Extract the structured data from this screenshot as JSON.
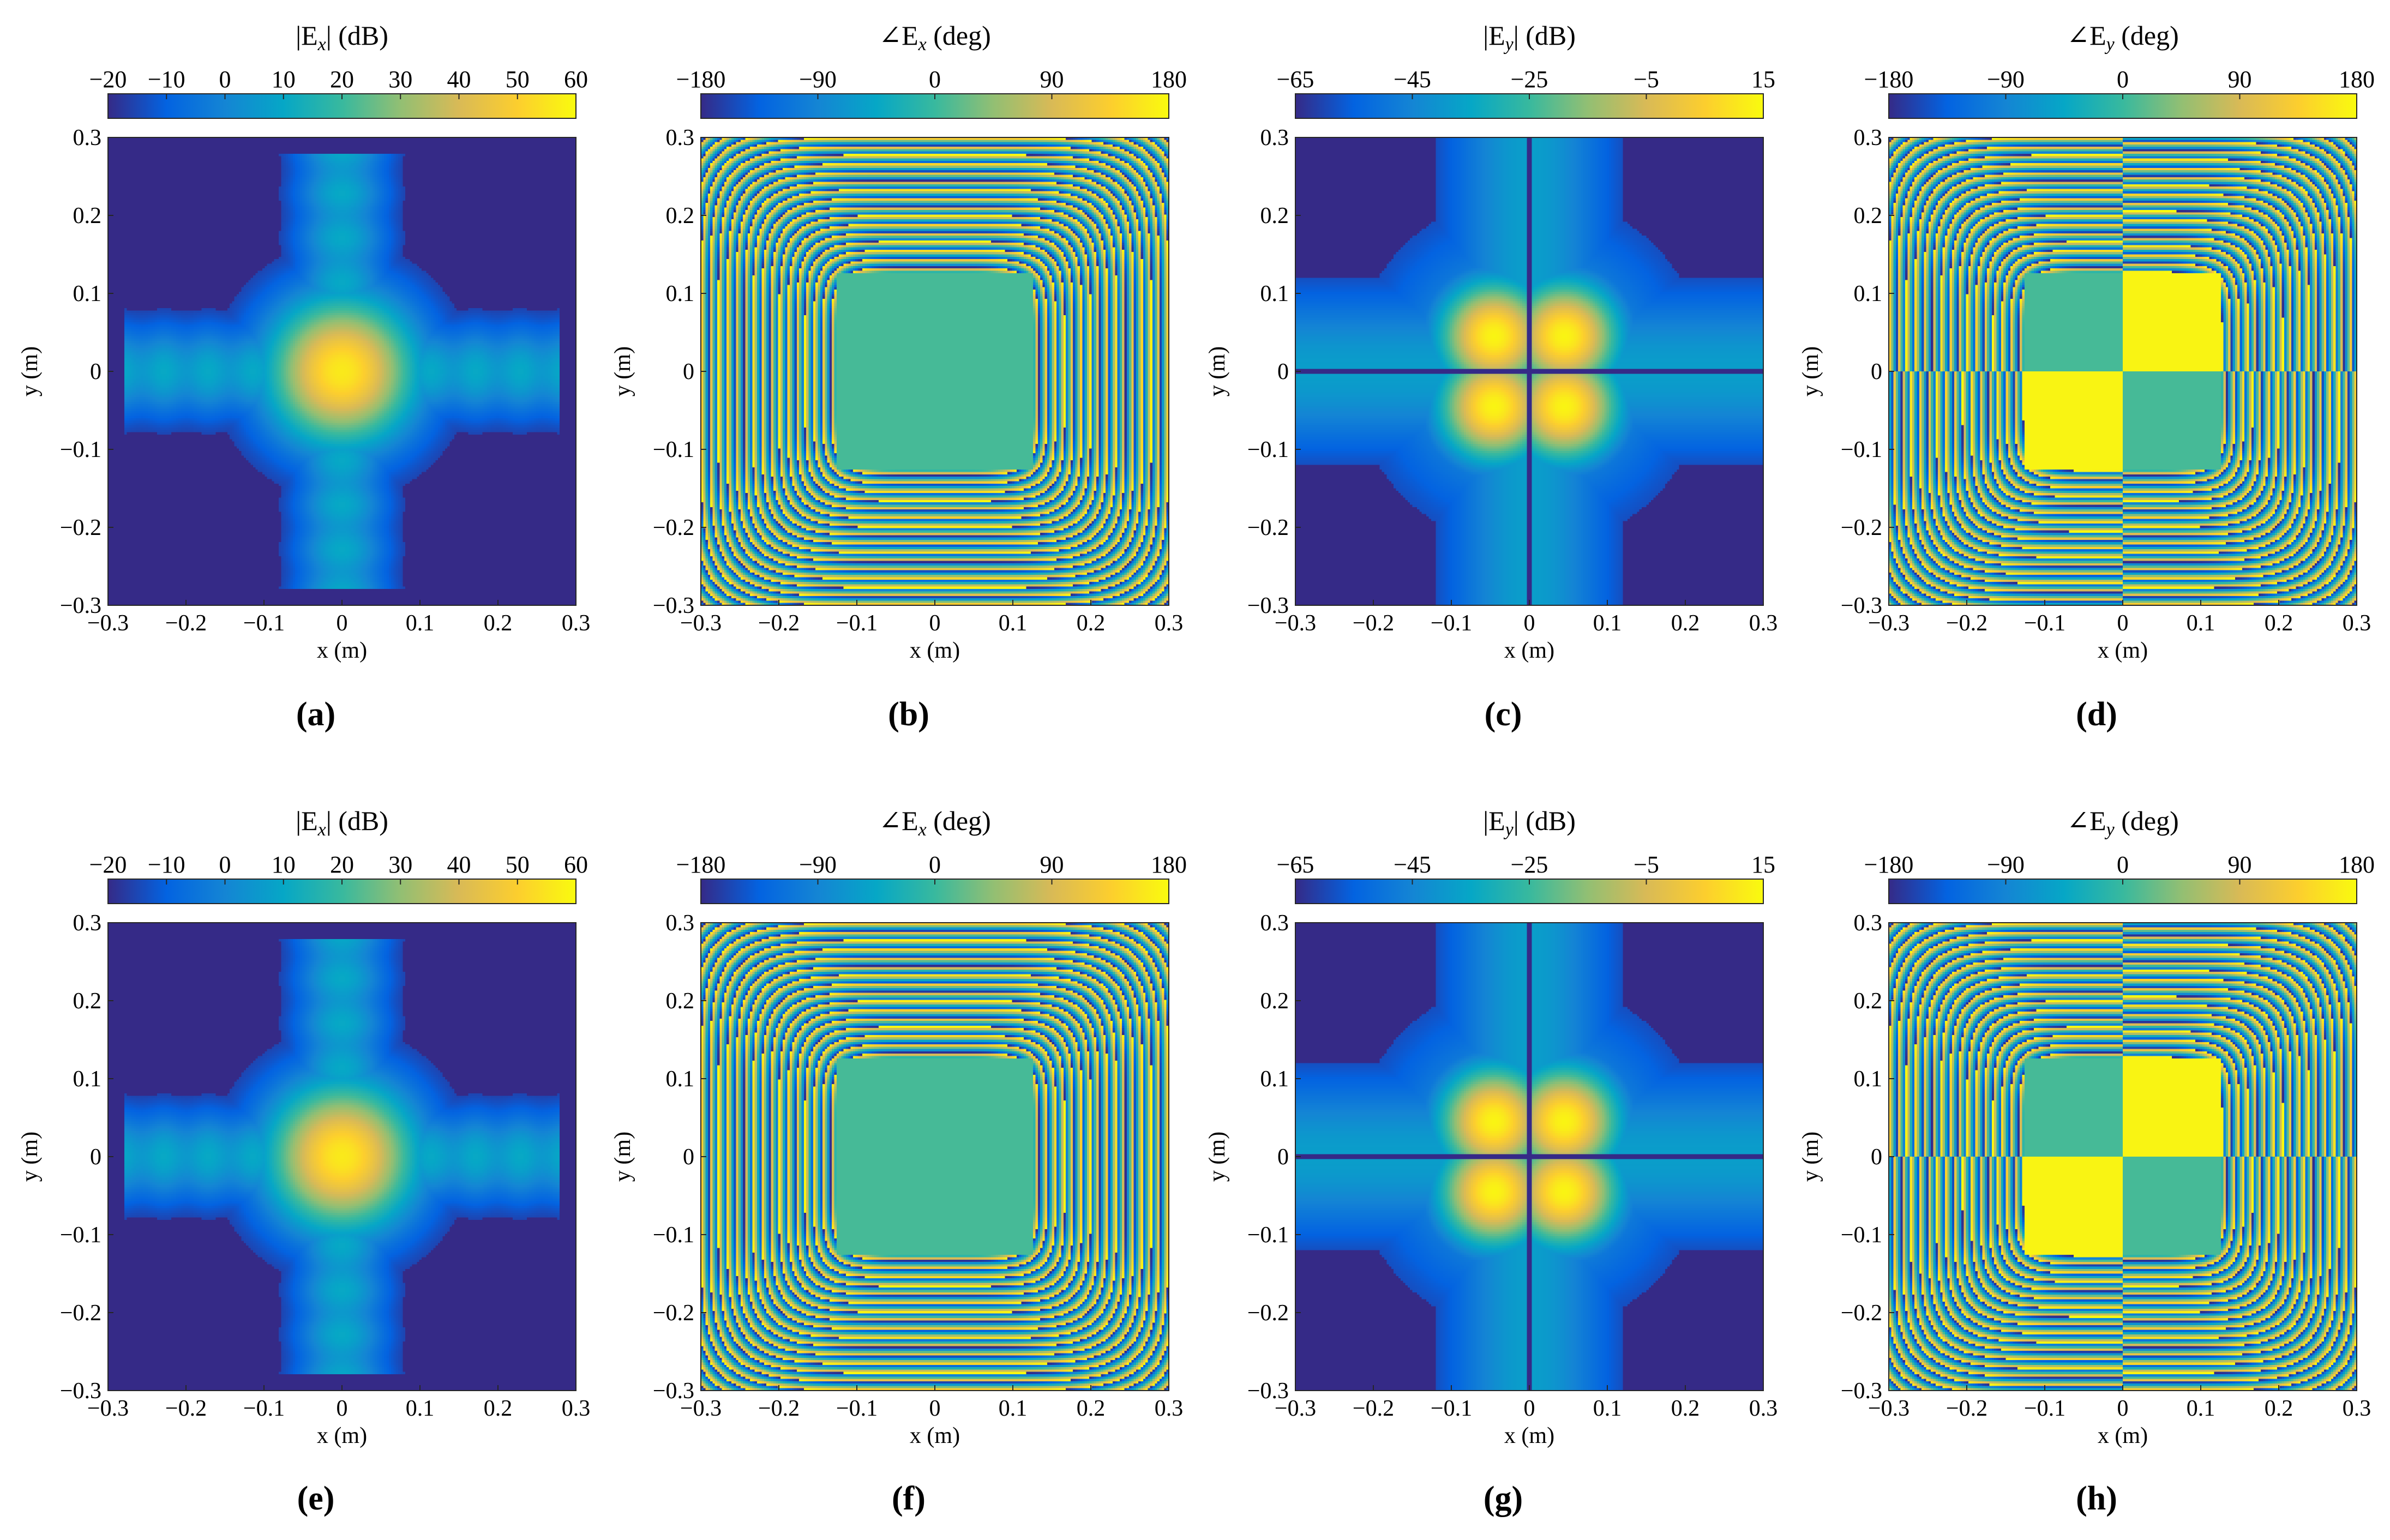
{
  "colors": {
    "parula": [
      "#352a87",
      "#0363e1",
      "#1485d4",
      "#06a7c6",
      "#38b99e",
      "#92bf73",
      "#d9ba56",
      "#fcce2e",
      "#f9fb0e"
    ]
  },
  "chart_data": [
    {
      "type": "heatmap",
      "panel_label": "(a)",
      "field": "Ex",
      "quantity": "magnitude",
      "map": "magnitude",
      "title": "|E_x| (dB)",
      "title_main": "|E",
      "title_sub": "x",
      "title_end": "| (dB)",
      "colorbar": {
        "range": [
          -20,
          60
        ],
        "ticks": [
          -20,
          -10,
          0,
          10,
          20,
          30,
          40,
          50,
          60
        ]
      },
      "xlabel": "x (m)",
      "ylabel": "y (m)",
      "xlim": [
        -0.3,
        0.3
      ],
      "ylim": [
        -0.3,
        0.3
      ],
      "xticks": [
        -0.3,
        -0.2,
        -0.1,
        0,
        0.1,
        0.2,
        0.3
      ],
      "yticks": [
        0.3,
        0.2,
        0.1,
        0,
        -0.1,
        -0.2,
        -0.3
      ]
    },
    {
      "type": "heatmap",
      "panel_label": "(b)",
      "field": "Ex",
      "quantity": "phase",
      "map": "phase_x",
      "title": "∠E_x (deg)",
      "title_main": "∠E",
      "title_sub": "x",
      "title_end": " (deg)",
      "colorbar": {
        "range": [
          -180,
          180
        ],
        "ticks": [
          -180,
          -90,
          0,
          90,
          180
        ]
      },
      "xlabel": "x (m)",
      "ylabel": "y (m)",
      "xlim": [
        -0.3,
        0.3
      ],
      "ylim": [
        -0.3,
        0.3
      ],
      "xticks": [
        -0.3,
        -0.2,
        -0.1,
        0,
        0.1,
        0.2,
        0.3
      ],
      "yticks": [
        0.3,
        0.2,
        0.1,
        0,
        -0.1,
        -0.2,
        -0.3
      ]
    },
    {
      "type": "heatmap",
      "panel_label": "(c)",
      "field": "Ey",
      "quantity": "magnitude",
      "map": "magnitude_y",
      "title": "|E_y| (dB)",
      "title_main": "|E",
      "title_sub": "y",
      "title_end": "| (dB)",
      "colorbar": {
        "range": [
          -65,
          15
        ],
        "ticks": [
          -65,
          -45,
          -25,
          -5,
          15
        ]
      },
      "xlabel": "x (m)",
      "ylabel": "y (m)",
      "xlim": [
        -0.3,
        0.3
      ],
      "ylim": [
        -0.3,
        0.3
      ],
      "xticks": [
        -0.3,
        -0.2,
        -0.1,
        0,
        0.1,
        0.2,
        0.3
      ],
      "yticks": [
        0.3,
        0.2,
        0.1,
        0,
        -0.1,
        -0.2,
        -0.3
      ]
    },
    {
      "type": "heatmap",
      "panel_label": "(d)",
      "field": "Ey",
      "quantity": "phase",
      "map": "phase_y",
      "title": "∠E_y (deg)",
      "title_main": "∠E",
      "title_sub": "y",
      "title_end": " (deg)",
      "colorbar": {
        "range": [
          -180,
          180
        ],
        "ticks": [
          -180,
          -90,
          0,
          90,
          180
        ]
      },
      "xlabel": "x (m)",
      "ylabel": "y (m)",
      "xlim": [
        -0.3,
        0.3
      ],
      "ylim": [
        -0.3,
        0.3
      ],
      "xticks": [
        -0.3,
        -0.2,
        -0.1,
        0,
        0.1,
        0.2,
        0.3
      ],
      "yticks": [
        0.3,
        0.2,
        0.1,
        0,
        -0.1,
        -0.2,
        -0.3
      ]
    },
    {
      "type": "heatmap",
      "panel_label": "(e)",
      "field": "Ex",
      "quantity": "magnitude",
      "map": "magnitude",
      "title": "|E_x| (dB)",
      "title_main": "|E",
      "title_sub": "x",
      "title_end": "| (dB)",
      "colorbar": {
        "range": [
          -20,
          60
        ],
        "ticks": [
          -20,
          -10,
          0,
          10,
          20,
          30,
          40,
          50,
          60
        ]
      },
      "xlabel": "x (m)",
      "ylabel": "y (m)",
      "xlim": [
        -0.3,
        0.3
      ],
      "ylim": [
        -0.3,
        0.3
      ],
      "xticks": [
        -0.3,
        -0.2,
        -0.1,
        0,
        0.1,
        0.2,
        0.3
      ],
      "yticks": [
        0.3,
        0.2,
        0.1,
        0,
        -0.1,
        -0.2,
        -0.3
      ]
    },
    {
      "type": "heatmap",
      "panel_label": "(f)",
      "field": "Ex",
      "quantity": "phase",
      "map": "phase_x",
      "title": "∠E_x (deg)",
      "title_main": "∠E",
      "title_sub": "x",
      "title_end": " (deg)",
      "colorbar": {
        "range": [
          -180,
          180
        ],
        "ticks": [
          -180,
          -90,
          0,
          90,
          180
        ]
      },
      "xlabel": "x (m)",
      "ylabel": "y (m)",
      "xlim": [
        -0.3,
        0.3
      ],
      "ylim": [
        -0.3,
        0.3
      ],
      "xticks": [
        -0.3,
        -0.2,
        -0.1,
        0,
        0.1,
        0.2,
        0.3
      ],
      "yticks": [
        0.3,
        0.2,
        0.1,
        0,
        -0.1,
        -0.2,
        -0.3
      ]
    },
    {
      "type": "heatmap",
      "panel_label": "(g)",
      "field": "Ey",
      "quantity": "magnitude",
      "map": "magnitude_y",
      "title": "|E_y| (dB)",
      "title_main": "|E",
      "title_sub": "y",
      "title_end": "| (dB)",
      "colorbar": {
        "range": [
          -65,
          15
        ],
        "ticks": [
          -65,
          -45,
          -25,
          -5,
          15
        ]
      },
      "xlabel": "x (m)",
      "ylabel": "y (m)",
      "xlim": [
        -0.3,
        0.3
      ],
      "ylim": [
        -0.3,
        0.3
      ],
      "xticks": [
        -0.3,
        -0.2,
        -0.1,
        0,
        0.1,
        0.2,
        0.3
      ],
      "yticks": [
        0.3,
        0.2,
        0.1,
        0,
        -0.1,
        -0.2,
        -0.3
      ]
    },
    {
      "type": "heatmap",
      "panel_label": "(h)",
      "field": "Ey",
      "quantity": "phase",
      "map": "phase_y",
      "title": "∠E_y (deg)",
      "title_main": "∠E",
      "title_sub": "y",
      "title_end": " (deg)",
      "colorbar": {
        "range": [
          -180,
          180
        ],
        "ticks": [
          -180,
          -90,
          0,
          90,
          180
        ]
      },
      "xlabel": "x (m)",
      "ylabel": "y (m)",
      "xlim": [
        -0.3,
        0.3
      ],
      "ylim": [
        -0.3,
        0.3
      ],
      "xticks": [
        -0.3,
        -0.2,
        -0.1,
        0,
        0.1,
        0.2,
        0.3
      ],
      "yticks": [
        0.3,
        0.2,
        0.1,
        0,
        -0.1,
        -0.2,
        -0.3
      ]
    }
  ]
}
